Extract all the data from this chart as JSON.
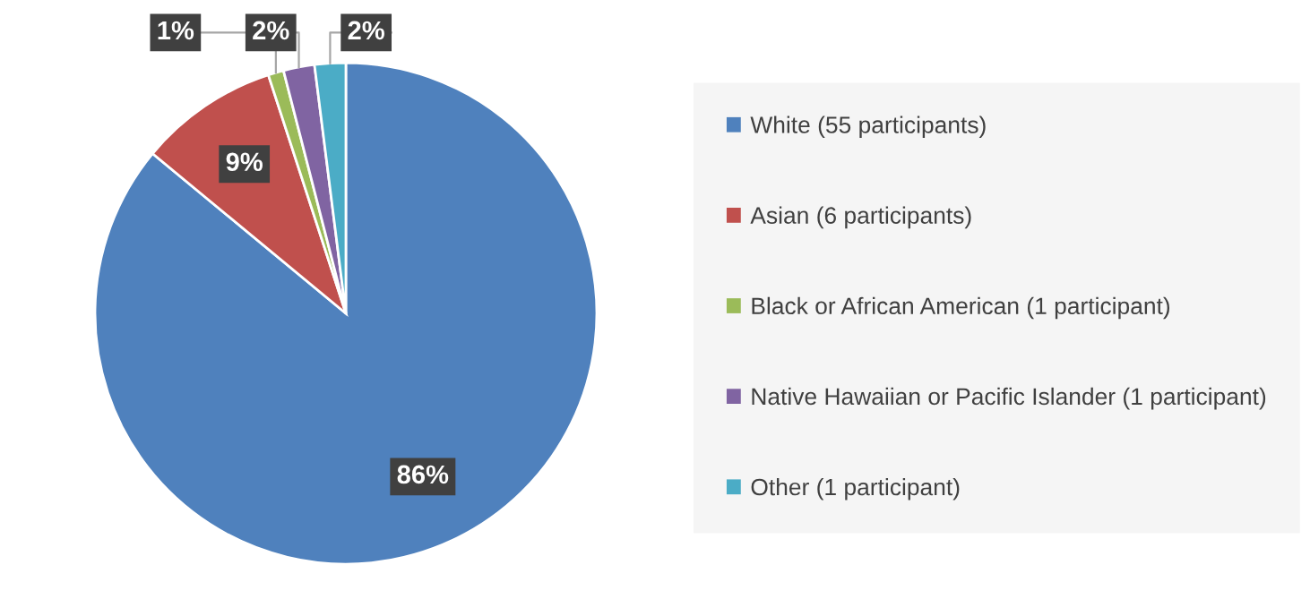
{
  "chart_data": {
    "type": "pie",
    "categories": [
      "White (55 participants)",
      "Asian (6 participants)",
      "Black or African American (1 participant)",
      "Native Hawaiian or Pacific Islander (1 participant)",
      "Other (1 participant)"
    ],
    "values": [
      86,
      9,
      1,
      2,
      2
    ],
    "colors": [
      "#4f81bd",
      "#c0504d",
      "#9bbb59",
      "#8064a2",
      "#4bacc6"
    ],
    "value_labels": [
      "86%",
      "9%",
      "1%",
      "2%",
      "2%"
    ],
    "legend": "right"
  }
}
